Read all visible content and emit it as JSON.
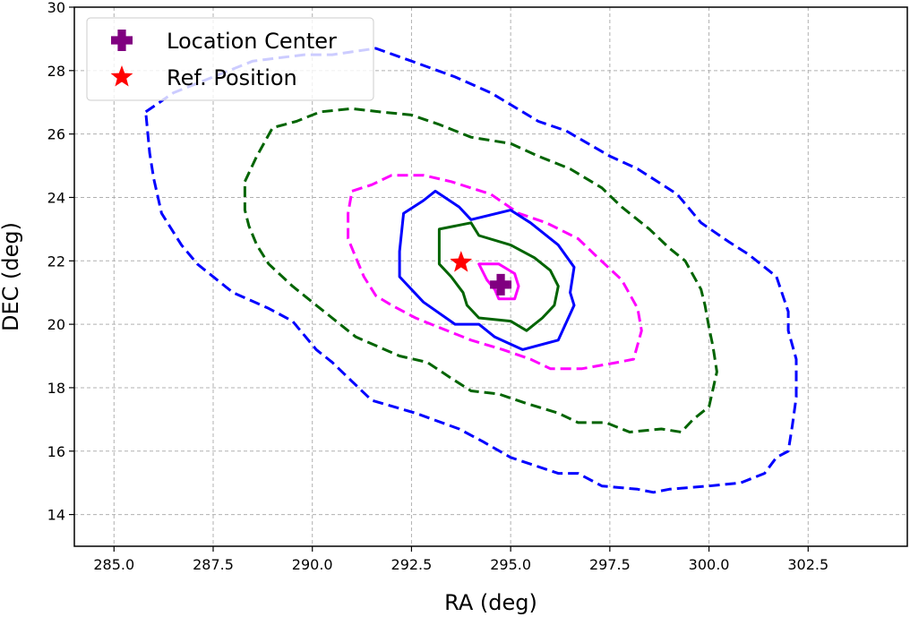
{
  "chart_data": {
    "type": "contour",
    "title": "",
    "xlabel": "RA (deg)",
    "ylabel": "DEC (deg)",
    "xlim": [
      284,
      305
    ],
    "ylim": [
      13,
      30
    ],
    "xticks": [
      285.0,
      287.5,
      290.0,
      292.5,
      295.0,
      297.5,
      300.0,
      302.5
    ],
    "xtick_labels": [
      "285.0",
      "287.5",
      "290.0",
      "292.5",
      "295.0",
      "297.5",
      "300.0",
      "302.5"
    ],
    "yticks": [
      14,
      16,
      18,
      20,
      22,
      24,
      26,
      28,
      30
    ],
    "ytick_labels": [
      "14",
      "16",
      "18",
      "20",
      "22",
      "24",
      "26",
      "28",
      "30"
    ],
    "grid": true,
    "legend": {
      "position": "top-left",
      "entries": [
        {
          "label": "Location Center",
          "marker": "plus",
          "color": "#800080"
        },
        {
          "label": "Ref. Position",
          "marker": "star",
          "color": "#ff0000"
        }
      ]
    },
    "points": [
      {
        "name": "Location Center",
        "x": 294.75,
        "y": 21.25,
        "marker": "plus",
        "color": "#800080"
      },
      {
        "name": "Ref. Position",
        "x": 293.75,
        "y": 21.95,
        "marker": "star",
        "color": "#ff0000"
      }
    ],
    "contours": [
      {
        "name": "blue-dashed",
        "color": "#0000ff",
        "style": "dashed",
        "points": [
          [
            285.8,
            26.7
          ],
          [
            286.5,
            27.3
          ],
          [
            287.5,
            27.8
          ],
          [
            288.5,
            28.3
          ],
          [
            289.8,
            28.5
          ],
          [
            290.5,
            28.5
          ],
          [
            291.6,
            28.7
          ],
          [
            292.5,
            28.3
          ],
          [
            293.6,
            27.8
          ],
          [
            294.5,
            27.3
          ],
          [
            295.7,
            26.4
          ],
          [
            296.4,
            26.1
          ],
          [
            297.5,
            25.3
          ],
          [
            298.2,
            24.9
          ],
          [
            299.2,
            24.1
          ],
          [
            299.8,
            23.2
          ],
          [
            300.5,
            22.6
          ],
          [
            301.0,
            22.2
          ],
          [
            301.7,
            21.5
          ],
          [
            302.0,
            20.4
          ],
          [
            302.0,
            19.8
          ],
          [
            302.2,
            18.9
          ],
          [
            302.2,
            17.7
          ],
          [
            302.1,
            16.8
          ],
          [
            302.0,
            16.0
          ],
          [
            301.7,
            15.8
          ],
          [
            301.4,
            15.3
          ],
          [
            300.8,
            15.0
          ],
          [
            300.0,
            14.9
          ],
          [
            299.0,
            14.8
          ],
          [
            298.6,
            14.7
          ],
          [
            298.2,
            14.8
          ],
          [
            297.3,
            14.9
          ],
          [
            296.7,
            15.3
          ],
          [
            296.2,
            15.3
          ],
          [
            295.0,
            15.8
          ],
          [
            294.3,
            16.3
          ],
          [
            293.7,
            16.7
          ],
          [
            292.6,
            17.2
          ],
          [
            291.5,
            17.6
          ],
          [
            291.0,
            18.2
          ],
          [
            290.5,
            18.8
          ],
          [
            290.1,
            19.2
          ],
          [
            289.5,
            20.1
          ],
          [
            288.9,
            20.5
          ],
          [
            288.0,
            21.0
          ],
          [
            287.1,
            21.9
          ],
          [
            286.7,
            22.5
          ],
          [
            286.2,
            23.5
          ],
          [
            286.0,
            24.6
          ],
          [
            285.9,
            25.4
          ],
          [
            285.8,
            26.7
          ]
        ]
      },
      {
        "name": "green-dashed",
        "color": "#006400",
        "style": "dashed",
        "points": [
          [
            288.3,
            24.5
          ],
          [
            288.6,
            25.3
          ],
          [
            289.0,
            26.2
          ],
          [
            289.6,
            26.4
          ],
          [
            290.2,
            26.7
          ],
          [
            291.0,
            26.8
          ],
          [
            291.7,
            26.7
          ],
          [
            292.5,
            26.6
          ],
          [
            293.2,
            26.3
          ],
          [
            294.0,
            25.9
          ],
          [
            295.0,
            25.7
          ],
          [
            295.7,
            25.3
          ],
          [
            296.5,
            24.9
          ],
          [
            297.3,
            24.3
          ],
          [
            297.8,
            23.7
          ],
          [
            298.5,
            23.0
          ],
          [
            299.0,
            22.4
          ],
          [
            299.4,
            22.0
          ],
          [
            299.8,
            21.1
          ],
          [
            299.9,
            20.6
          ],
          [
            300.0,
            19.9
          ],
          [
            300.1,
            19.3
          ],
          [
            300.2,
            18.5
          ],
          [
            300.0,
            17.4
          ],
          [
            299.6,
            17.0
          ],
          [
            299.3,
            16.6
          ],
          [
            298.8,
            16.7
          ],
          [
            298.0,
            16.6
          ],
          [
            297.4,
            16.9
          ],
          [
            296.7,
            16.9
          ],
          [
            296.2,
            17.2
          ],
          [
            295.4,
            17.5
          ],
          [
            294.7,
            17.8
          ],
          [
            294.0,
            17.9
          ],
          [
            293.5,
            18.3
          ],
          [
            292.9,
            18.8
          ],
          [
            292.2,
            19.0
          ],
          [
            291.1,
            19.6
          ],
          [
            290.4,
            20.3
          ],
          [
            290.1,
            20.6
          ],
          [
            289.5,
            21.2
          ],
          [
            288.9,
            21.9
          ],
          [
            288.6,
            22.5
          ],
          [
            288.4,
            23.1
          ],
          [
            288.3,
            23.6
          ],
          [
            288.3,
            24.5
          ]
        ]
      },
      {
        "name": "magenta-dashed",
        "color": "#ff00ff",
        "style": "dashed",
        "points": [
          [
            291.0,
            24.2
          ],
          [
            291.5,
            24.4
          ],
          [
            292.0,
            24.7
          ],
          [
            292.8,
            24.7
          ],
          [
            293.5,
            24.5
          ],
          [
            294.5,
            24.1
          ],
          [
            295.2,
            23.5
          ],
          [
            295.9,
            23.2
          ],
          [
            296.7,
            22.7
          ],
          [
            297.2,
            22.1
          ],
          [
            297.8,
            21.4
          ],
          [
            298.2,
            20.5
          ],
          [
            298.3,
            19.8
          ],
          [
            298.1,
            18.9
          ],
          [
            297.7,
            18.8
          ],
          [
            296.8,
            18.6
          ],
          [
            296.0,
            18.6
          ],
          [
            295.5,
            18.9
          ],
          [
            294.8,
            19.2
          ],
          [
            294.0,
            19.5
          ],
          [
            293.2,
            19.9
          ],
          [
            292.6,
            20.2
          ],
          [
            292.0,
            20.6
          ],
          [
            291.6,
            20.9
          ],
          [
            291.3,
            21.5
          ],
          [
            291.1,
            22.1
          ],
          [
            290.9,
            22.7
          ],
          [
            290.9,
            23.5
          ],
          [
            291.0,
            24.2
          ]
        ]
      },
      {
        "name": "blue-solid",
        "color": "#0000ff",
        "style": "solid",
        "points": [
          [
            292.3,
            23.5
          ],
          [
            292.8,
            23.9
          ],
          [
            293.1,
            24.2
          ],
          [
            293.7,
            23.7
          ],
          [
            294.0,
            23.3
          ],
          [
            295.0,
            23.6
          ],
          [
            295.5,
            23.2
          ],
          [
            296.2,
            22.5
          ],
          [
            296.6,
            21.8
          ],
          [
            296.5,
            21.0
          ],
          [
            296.6,
            20.6
          ],
          [
            296.2,
            19.5
          ],
          [
            295.3,
            19.2
          ],
          [
            294.6,
            19.6
          ],
          [
            294.2,
            20.0
          ],
          [
            293.6,
            20.0
          ],
          [
            292.8,
            20.7
          ],
          [
            292.2,
            21.5
          ],
          [
            292.2,
            22.3
          ],
          [
            292.3,
            23.5
          ]
        ]
      },
      {
        "name": "green-solid",
        "color": "#006400",
        "style": "solid",
        "points": [
          [
            293.2,
            22.7
          ],
          [
            293.2,
            23.0
          ],
          [
            294.0,
            23.2
          ],
          [
            294.2,
            22.8
          ],
          [
            295.0,
            22.5
          ],
          [
            295.6,
            22.1
          ],
          [
            296.0,
            21.7
          ],
          [
            296.2,
            21.2
          ],
          [
            296.1,
            20.6
          ],
          [
            295.8,
            20.2
          ],
          [
            295.4,
            19.8
          ],
          [
            295.0,
            20.1
          ],
          [
            294.2,
            20.2
          ],
          [
            293.9,
            20.6
          ],
          [
            293.8,
            21.0
          ],
          [
            293.5,
            21.5
          ],
          [
            293.2,
            21.9
          ],
          [
            293.2,
            22.7
          ]
        ]
      },
      {
        "name": "magenta-solid",
        "color": "#ff00ff",
        "style": "solid",
        "points": [
          [
            294.2,
            21.9
          ],
          [
            294.7,
            21.9
          ],
          [
            295.1,
            21.6
          ],
          [
            295.2,
            21.2
          ],
          [
            295.1,
            20.8
          ],
          [
            294.7,
            20.8
          ],
          [
            294.6,
            21.1
          ],
          [
            294.4,
            21.4
          ],
          [
            294.2,
            21.9
          ]
        ]
      }
    ]
  }
}
